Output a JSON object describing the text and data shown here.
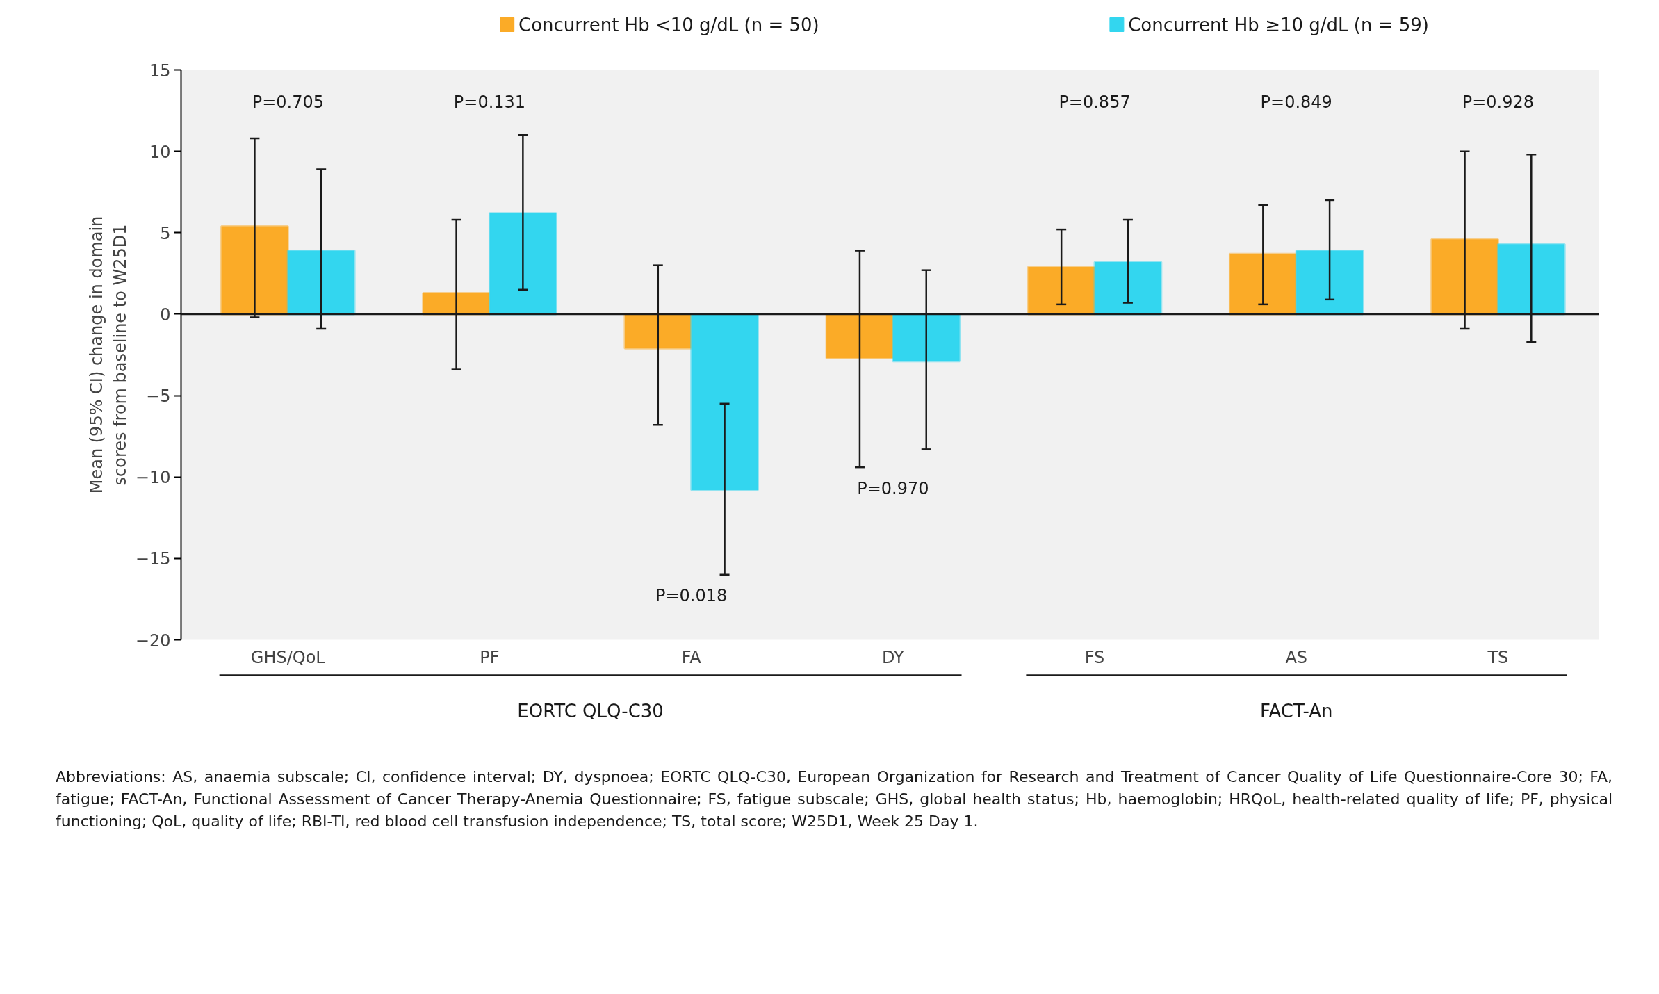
{
  "chart_data": {
    "type": "bar",
    "ylabel": "Mean (95% CI) change in domain scores from baseline to W25D1",
    "categories": [
      "GHS/QoL",
      "PF",
      "FA",
      "DY",
      "FS",
      "AS",
      "TS"
    ],
    "series": [
      {
        "name": "Concurrent Hb <10 g/dL (n = 50)",
        "color": "#fbab27",
        "values": [
          5.4,
          1.3,
          -2.1,
          -2.7,
          2.9,
          3.7,
          4.6
        ],
        "errors": [
          [
            -0.2,
            10.8
          ],
          [
            -3.4,
            5.8
          ],
          [
            -6.8,
            3.0
          ],
          [
            -9.4,
            3.9
          ],
          [
            0.6,
            5.2
          ],
          [
            0.6,
            6.7
          ],
          [
            -0.9,
            10.0
          ]
        ]
      },
      {
        "name": "Concurrent Hb ≥10 g/dL (n = 59)",
        "color": "#33d6ef",
        "values": [
          3.9,
          6.2,
          -10.8,
          -2.9,
          3.2,
          3.9,
          4.3
        ],
        "errors": [
          [
            -0.9,
            8.9
          ],
          [
            1.5,
            11.0
          ],
          [
            -16.0,
            -5.5
          ],
          [
            -8.3,
            2.7
          ],
          [
            0.7,
            5.8
          ],
          [
            0.9,
            7.0
          ],
          [
            -1.7,
            9.8
          ]
        ]
      }
    ],
    "ylim": [
      -20,
      15
    ],
    "yticks": [
      -20,
      -15,
      -10,
      -5,
      0,
      5,
      10,
      15
    ],
    "grid": false,
    "legend": "top",
    "ref_lines": [
      {
        "axis": "y",
        "value": 0
      }
    ],
    "annotations": [
      "P=0.705",
      "P=0.131",
      "P=0.018",
      "P=0.970",
      "P=0.857",
      "P=0.849",
      "P=0.928",
      "EORTC QLQ-C30",
      "FACT-An",
      "Abbreviations: AS, anaemia subscale; CI, confidence interval; DY, dyspnoea; EORTC QLQ-C30, European Organization for Research and Treatment of Cancer Quality of Life Questionnaire-Core 30; FA, fatigue; FACT-An, Functional Assessment of Cancer Therapy-Anemia Questionnaire; FS, fatigue subscale; GHS, global health status; Hb, haemoglobin; HRQoL, health-related quality of life; PF, physical functioning; QoL, quality of life; RBI-TI, red blood cell transfusion independence; TS, total score; W25D1, Week 25 Day 1."
    ]
  }
}
